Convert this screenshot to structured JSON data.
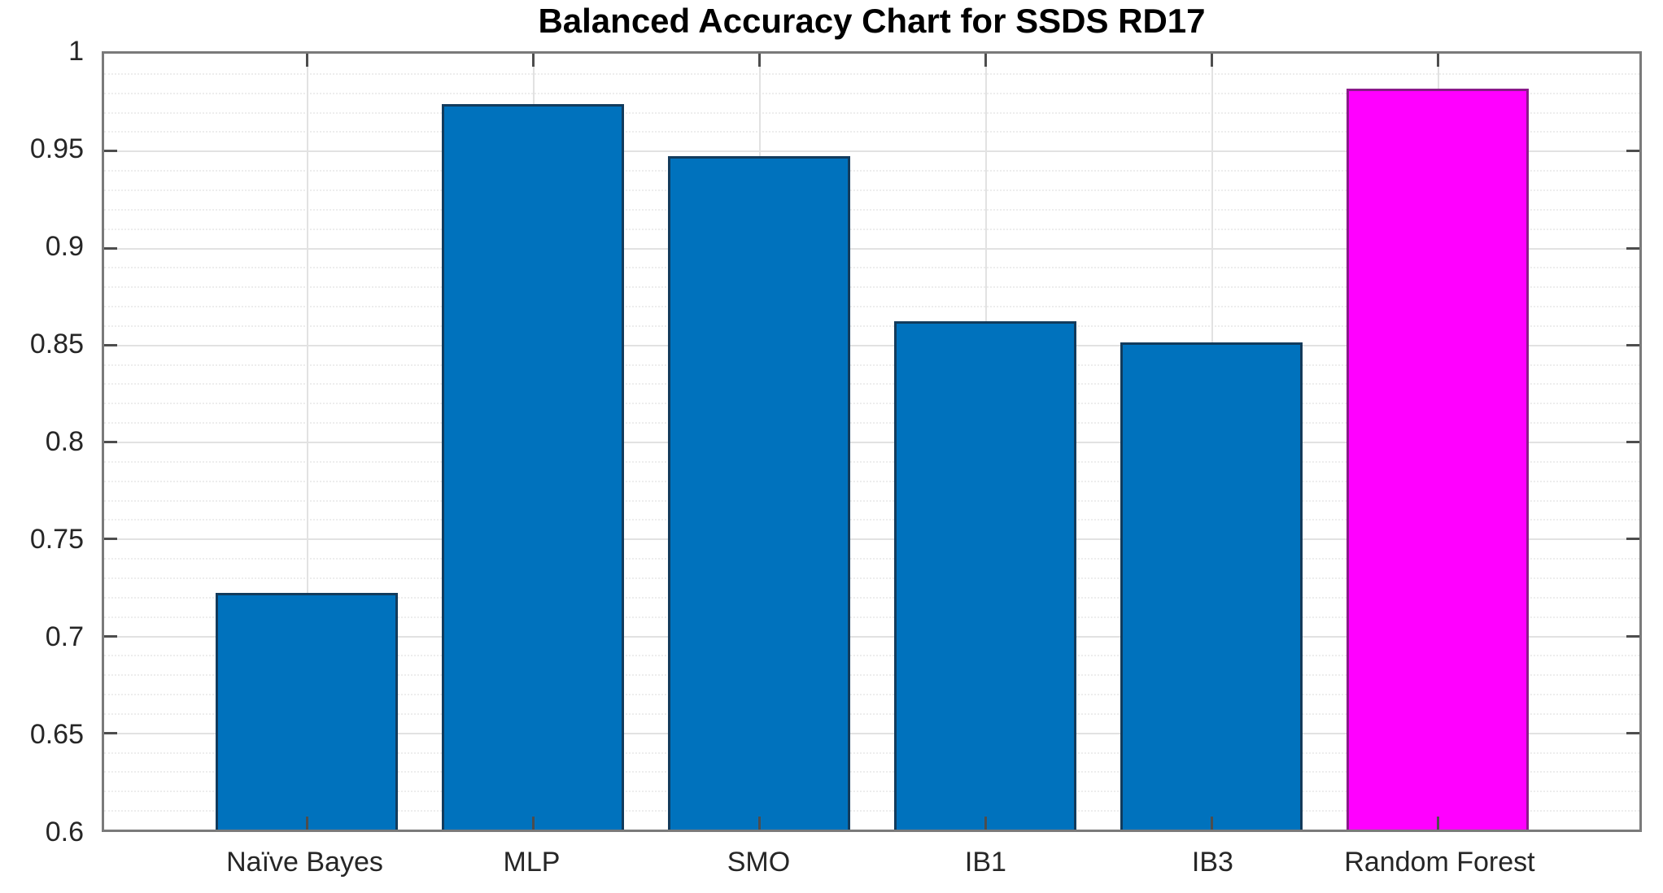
{
  "figure": {
    "title": "Balanced Accuracy Chart for SSDS RD17"
  },
  "chart_data": {
    "type": "bar",
    "title": "Balanced Accuracy Chart for SSDS RD17",
    "categories": [
      "Naïve Bayes",
      "MLP",
      "SMO",
      "IB1",
      "IB3",
      "Random Forest"
    ],
    "values": [
      0.722,
      0.974,
      0.947,
      0.862,
      0.851,
      0.982
    ],
    "bar_colors": [
      "#0072BD",
      "#0072BD",
      "#0072BD",
      "#0072BD",
      "#0072BD",
      "#FF00FF"
    ],
    "bar_edge_colors": [
      "#123B5C",
      "#123B5C",
      "#123B5C",
      "#123B5C",
      "#123B5C",
      "#8A1B8A"
    ],
    "xlabel": "",
    "ylabel": "",
    "ylim": [
      0.6,
      1.0
    ],
    "yticks": [
      0.6,
      0.65,
      0.7,
      0.75,
      0.8,
      0.85,
      0.9,
      0.95,
      1
    ],
    "yticklabels": [
      "0.6",
      "0.65",
      "0.7",
      "0.75",
      "0.8",
      "0.85",
      "0.9",
      "0.95",
      "1"
    ],
    "y_minor_step": 0.01,
    "grid": true,
    "minor_grid": true,
    "legend": "none",
    "layout": {
      "first_center_frac": 0.1318,
      "pitch_frac": 0.14738,
      "bar_width_frac": 0.1189
    }
  },
  "colors": {
    "background": "#ffffff",
    "bar_fill": "#0072BD",
    "highlight_fill": "#FF00FF",
    "grid_major": "#e2e2e2",
    "grid_minor": "#ededed",
    "axis_frame": "#7a7a7a",
    "tick": "#4d4d4d",
    "tick_label_text": "#262626",
    "title_text": "#000000"
  }
}
